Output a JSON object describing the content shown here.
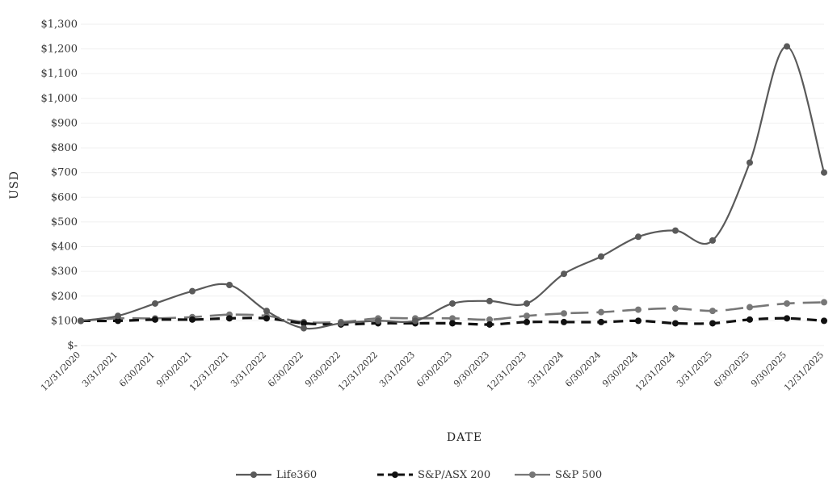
{
  "chart_data": {
    "type": "line",
    "xlabel": "DATE",
    "ylabel": "USD",
    "ylim": [
      0,
      1300
    ],
    "y_ticks": [
      "$-",
      "$100",
      "$200",
      "$300",
      "$400",
      "$500",
      "$600",
      "$700",
      "$800",
      "$900",
      "$1,000",
      "$1,100",
      "$1,200",
      "$1,300"
    ],
    "categories": [
      "12/31/2020",
      "3/31/2021",
      "6/30/2021",
      "9/30/2021",
      "12/31/2021",
      "3/31/2022",
      "6/30/2022",
      "9/30/2022",
      "12/31/2022",
      "3/31/2023",
      "6/30/2023",
      "9/30/2023",
      "12/31/2023",
      "3/31/2024",
      "6/30/2024",
      "9/30/2024",
      "12/31/2024",
      "3/31/2025",
      "6/30/2025",
      "9/30/2025",
      "12/31/2025"
    ],
    "series": [
      {
        "name": "Life360",
        "color": "#5a5a5a",
        "style": "solid",
        "values": [
          100,
          120,
          170,
          220,
          245,
          140,
          70,
          90,
          100,
          100,
          170,
          180,
          170,
          290,
          360,
          440,
          465,
          425,
          740,
          1210,
          700
        ]
      },
      {
        "name": "S&P/ASX 200",
        "color": "#111111",
        "style": "dashed",
        "values": [
          100,
          100,
          105,
          105,
          110,
          110,
          90,
          85,
          90,
          90,
          90,
          85,
          95,
          95,
          95,
          100,
          90,
          90,
          105,
          110,
          100
        ]
      },
      {
        "name": "S&P 500",
        "color": "#777777",
        "style": "solid",
        "values": [
          100,
          110,
          110,
          115,
          125,
          120,
          95,
          95,
          110,
          110,
          110,
          105,
          120,
          130,
          135,
          145,
          150,
          140,
          155,
          170,
          175
        ]
      }
    ],
    "legend_position": "bottom",
    "grid": true
  }
}
